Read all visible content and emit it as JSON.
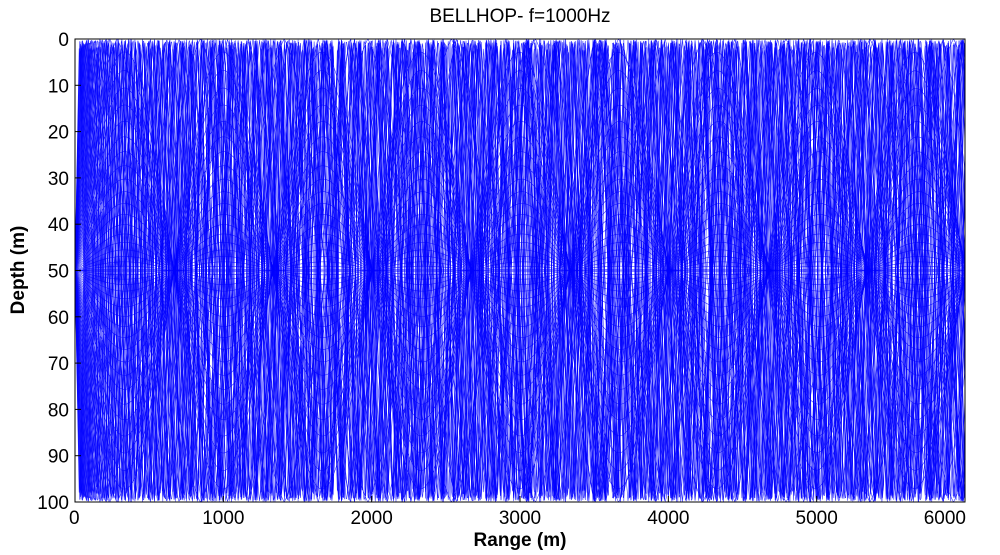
{
  "chart_data": {
    "type": "line",
    "title": "BELLHOP- f=1000Hz",
    "xlabel": "Range (m)",
    "ylabel": "Depth (m)",
    "xlim": [
      0,
      6000
    ],
    "ylim": [
      0,
      100
    ],
    "y_reversed": true,
    "grid": false,
    "xticks": [
      0,
      1000,
      2000,
      3000,
      4000,
      5000,
      6000
    ],
    "yticks": [
      0,
      10,
      20,
      30,
      40,
      50,
      60,
      70,
      80,
      90,
      100
    ],
    "ray_color": "#0000ff",
    "source_range": 0,
    "source_depth": 50,
    "ray_count": 101,
    "max_launch_angle_deg": 60,
    "series": [
      {
        "values": "eigenrays traced from source at 50 m depth, reflecting between surface (0 m) and bottom (100 m) out to 6000 m range"
      }
    ]
  }
}
